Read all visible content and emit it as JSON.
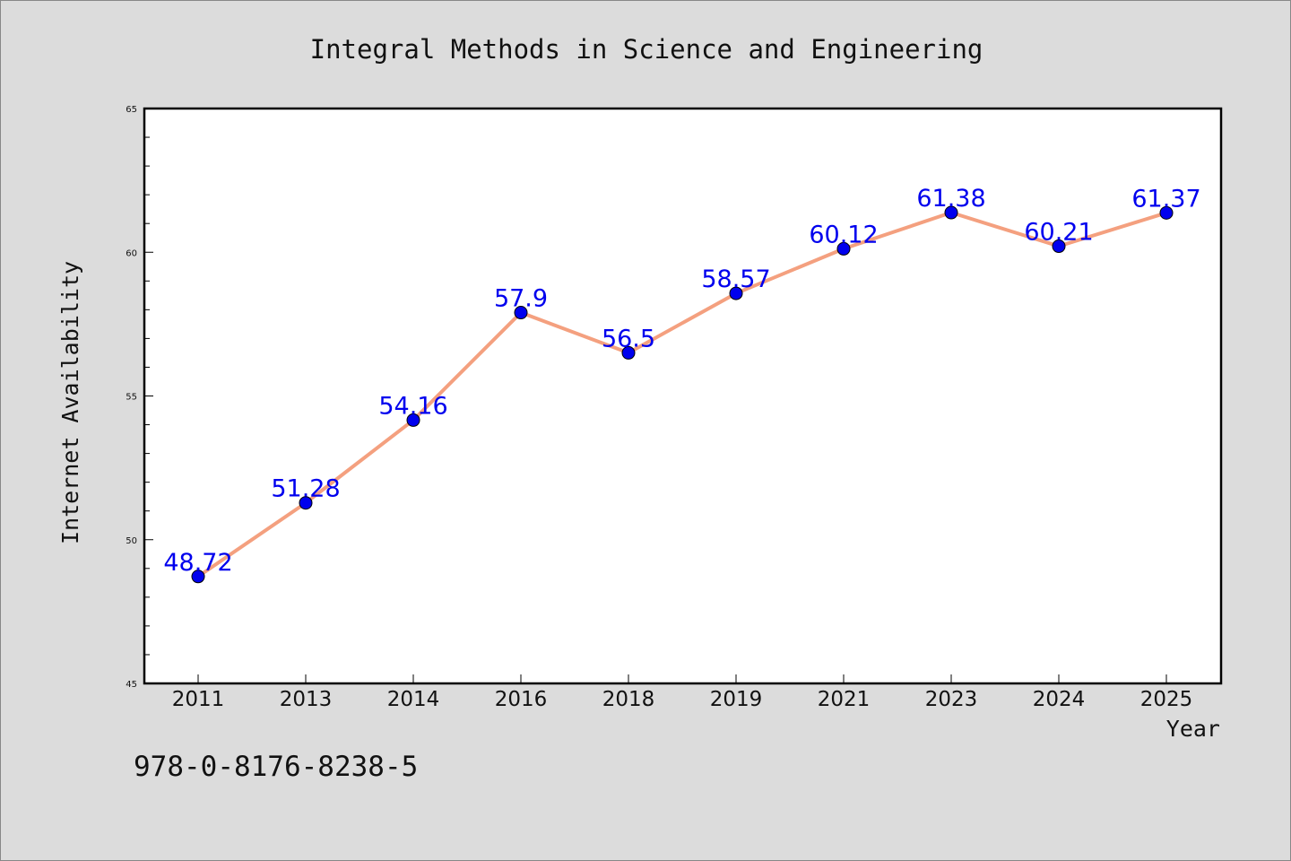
{
  "chart_data": {
    "type": "line",
    "title": "Integral Methods in Science and Engineering",
    "xlabel": "Year",
    "ylabel": "Internet Availability",
    "categories": [
      "2011",
      "2013",
      "2014",
      "2016",
      "2018",
      "2019",
      "2021",
      "2023",
      "2024",
      "2025"
    ],
    "series": [
      {
        "values": [
          48.72,
          51.28,
          54.16,
          57.9,
          56.5,
          58.57,
          60.12,
          61.38,
          60.21,
          61.37
        ],
        "labels": [
          "48.72",
          "51.28",
          "54.16",
          "57.9",
          "56.5",
          "58.57",
          "60.12",
          "61.38",
          "60.21",
          "61.37"
        ],
        "line_color": "#f4a07f",
        "marker_color": "#0000ee",
        "label_color": "#0000ee"
      }
    ],
    "ylim": [
      45,
      65
    ],
    "yticks": [
      "45",
      "50",
      "55",
      "60",
      "65"
    ],
    "grid": false,
    "legend": "none"
  },
  "footer_text": "978-0-8176-8238-5"
}
